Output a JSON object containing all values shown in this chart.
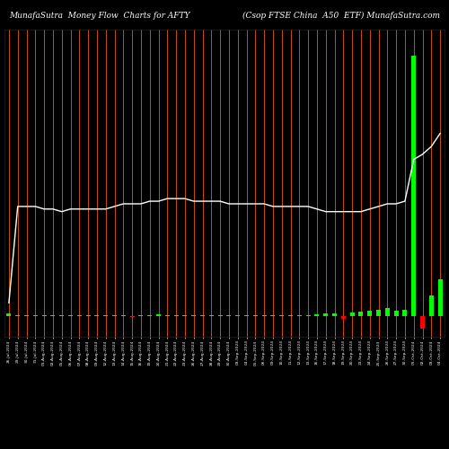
{
  "title_left": "MunafaSutra  Money Flow  Charts for AFTY",
  "title_right": "(Csop FTSE China  A50  ETF) MunafaSutra.com",
  "background_color": "#000000",
  "plot_bg_color": "#000000",
  "orange_line_color": "#c85000",
  "white_line_color": "#ffffff",
  "bar_up_color": "#00ff00",
  "bar_down_color": "#ff0000",
  "n_bars": 50,
  "labels": [
    "26-Jul-2024",
    "29-Jul-2024",
    "30-Jul-2024",
    "31-Jul-2024",
    "01-Aug-2024",
    "02-Aug-2024",
    "05-Aug-2024",
    "06-Aug-2024",
    "07-Aug-2024",
    "08-Aug-2024",
    "09-Aug-2024",
    "12-Aug-2024",
    "13-Aug-2024",
    "14-Aug-2024",
    "15-Aug-2024",
    "16-Aug-2024",
    "19-Aug-2024",
    "20-Aug-2024",
    "21-Aug-2024",
    "22-Aug-2024",
    "23-Aug-2024",
    "26-Aug-2024",
    "27-Aug-2024",
    "28-Aug-2024",
    "29-Aug-2024",
    "30-Aug-2024",
    "03-Sep-2024",
    "04-Sep-2024",
    "05-Sep-2024",
    "06-Sep-2024",
    "09-Sep-2024",
    "10-Sep-2024",
    "11-Sep-2024",
    "12-Sep-2024",
    "13-Sep-2024",
    "16-Sep-2024",
    "17-Sep-2024",
    "18-Sep-2024",
    "19-Sep-2024",
    "20-Sep-2024",
    "23-Sep-2024",
    "24-Sep-2024",
    "25-Sep-2024",
    "26-Sep-2024",
    "27-Sep-2024",
    "30-Sep-2024",
    "01-Oct-2024",
    "02-Oct-2024",
    "03-Oct-2024",
    "04-Oct-2024"
  ],
  "bar_values": [
    1,
    0.3,
    0.3,
    0.4,
    0.3,
    0.3,
    0.3,
    0.3,
    0.3,
    0.3,
    0.3,
    0.3,
    0.3,
    0.3,
    -0.3,
    0.3,
    0.3,
    0.5,
    0.3,
    0.3,
    0.3,
    0.3,
    0.3,
    0.3,
    0.3,
    0.3,
    0.3,
    0.3,
    0.3,
    0.3,
    0.3,
    0.3,
    0.3,
    0.3,
    0.3,
    0.5,
    0.8,
    1.0,
    -1.2,
    1.2,
    1.5,
    2.0,
    2.5,
    3.0,
    2.0,
    2.5,
    100,
    -5,
    8,
    14
  ],
  "white_line_raw": [
    5,
    42,
    42,
    42,
    41,
    41,
    40,
    41,
    41,
    41,
    41,
    41,
    42,
    43,
    43,
    43,
    44,
    44,
    45,
    45,
    45,
    44,
    44,
    44,
    44,
    43,
    43,
    43,
    43,
    43,
    42,
    42,
    42,
    42,
    42,
    41,
    40,
    40,
    40,
    40,
    40,
    41,
    42,
    43,
    43,
    44,
    60,
    62,
    65,
    70
  ],
  "ylim_max": 110,
  "ylim_min": -8
}
